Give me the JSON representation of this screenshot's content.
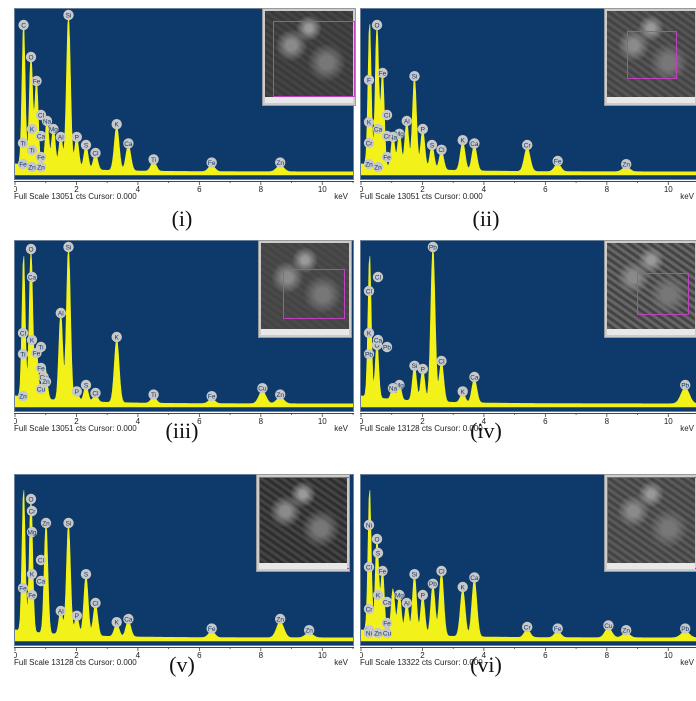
{
  "colors": {
    "plot_bg": "#0e3a6b",
    "spectrum": "#f2f21a",
    "label_fill": "#c8c8c8",
    "label_text": "#0e3a6b",
    "inset_select": "#c040c0"
  },
  "status_prefix": "Full Scale",
  "status_suffix": "cts Cursor: 0.000",
  "unit_label": "keV",
  "x_ticks": [
    0,
    2,
    4,
    6,
    8,
    10
  ],
  "chart_data": [
    {
      "type": "area",
      "caption": "(i)",
      "full_scale": "13051",
      "xlim": [
        0,
        11
      ],
      "peaks": [
        {
          "el": "C",
          "kev": 0.28,
          "h": 0.9
        },
        {
          "el": "O",
          "kev": 0.52,
          "h": 0.7
        },
        {
          "el": "Fe",
          "kev": 0.7,
          "h": 0.55
        },
        {
          "el": "Na",
          "kev": 1.04,
          "h": 0.3
        },
        {
          "el": "Mg",
          "kev": 1.25,
          "h": 0.25
        },
        {
          "el": "Al",
          "kev": 1.49,
          "h": 0.2
        },
        {
          "el": "Si",
          "kev": 1.74,
          "h": 0.97
        },
        {
          "el": "P",
          "kev": 2.01,
          "h": 0.2
        },
        {
          "el": "S",
          "kev": 2.31,
          "h": 0.15
        },
        {
          "el": "Cl",
          "kev": 2.62,
          "h": 0.1
        },
        {
          "el": "K",
          "kev": 3.31,
          "h": 0.28
        },
        {
          "el": "Ca",
          "kev": 3.69,
          "h": 0.16
        },
        {
          "el": "Ti",
          "kev": 4.51,
          "h": 0.06
        },
        {
          "el": "Fe",
          "kev": 6.4,
          "h": 0.04
        },
        {
          "el": "Zn",
          "kev": 8.63,
          "h": 0.04
        }
      ],
      "labels": [
        "Cl",
        "Ti",
        "Ca",
        "K",
        "O",
        "Na",
        "C",
        "Fe",
        "Zn",
        "Mg",
        "P",
        "Al",
        "S",
        "Fe",
        "Cl",
        "Si",
        "K",
        "Ca",
        "Ti",
        "Ti",
        "Fe",
        "Fe",
        "Zn",
        "Zn"
      ]
    },
    {
      "type": "area",
      "caption": "(ii)",
      "full_scale": "13051",
      "xlim": [
        0,
        11
      ],
      "peaks": [
        {
          "el": "C",
          "kev": 0.28,
          "h": 0.9
        },
        {
          "el": "O",
          "kev": 0.52,
          "h": 0.9
        },
        {
          "el": "Fe",
          "kev": 0.7,
          "h": 0.6
        },
        {
          "el": "Na",
          "kev": 1.04,
          "h": 0.2
        },
        {
          "el": "Mg",
          "kev": 1.25,
          "h": 0.22
        },
        {
          "el": "Al",
          "kev": 1.49,
          "h": 0.3
        },
        {
          "el": "Si",
          "kev": 1.74,
          "h": 0.58
        },
        {
          "el": "P",
          "kev": 2.01,
          "h": 0.25
        },
        {
          "el": "S",
          "kev": 2.31,
          "h": 0.15
        },
        {
          "el": "Cl",
          "kev": 2.62,
          "h": 0.12
        },
        {
          "el": "K",
          "kev": 3.31,
          "h": 0.18
        },
        {
          "el": "Ca",
          "kev": 3.69,
          "h": 0.16
        },
        {
          "el": "Cr",
          "kev": 5.41,
          "h": 0.15
        },
        {
          "el": "Fe",
          "kev": 6.4,
          "h": 0.05
        },
        {
          "el": "Zn",
          "kev": 8.63,
          "h": 0.03
        }
      ],
      "labels": [
        "Cl",
        "Fe",
        "Cr",
        "Ca",
        "K",
        "O",
        "Al",
        "Mg",
        "Na",
        "F",
        "Zn",
        "Si",
        "P",
        "S",
        "Cl",
        "K",
        "Ca",
        "Cr",
        "Cr",
        "Fe",
        "Fe",
        "Zn",
        "Zn"
      ]
    },
    {
      "type": "area",
      "caption": "(iii)",
      "full_scale": "13051",
      "xlim": [
        0,
        11
      ],
      "peaks": [
        {
          "el": "C",
          "kev": 0.28,
          "h": 0.9
        },
        {
          "el": "O",
          "kev": 0.52,
          "h": 0.95
        },
        {
          "el": "Fe",
          "kev": 0.7,
          "h": 0.3
        },
        {
          "el": "Cu",
          "kev": 0.93,
          "h": 0.15
        },
        {
          "el": "Zn",
          "kev": 1.01,
          "h": 0.12
        },
        {
          "el": "Al",
          "kev": 1.49,
          "h": 0.55
        },
        {
          "el": "Si",
          "kev": 1.74,
          "h": 0.97
        },
        {
          "el": "P",
          "kev": 2.01,
          "h": 0.06
        },
        {
          "el": "S",
          "kev": 2.31,
          "h": 0.1
        },
        {
          "el": "Cl",
          "kev": 2.62,
          "h": 0.05
        },
        {
          "el": "K",
          "kev": 3.31,
          "h": 0.4
        },
        {
          "el": "Ti",
          "kev": 4.51,
          "h": 0.04
        },
        {
          "el": "Fe",
          "kev": 6.4,
          "h": 0.03
        },
        {
          "el": "Cu",
          "kev": 8.05,
          "h": 0.08
        },
        {
          "el": "Zn",
          "kev": 8.63,
          "h": 0.04
        }
      ],
      "labels": [
        "Cl",
        "Fe",
        "Ti",
        "K",
        "Ca",
        "O",
        "Al",
        "Si",
        "Cu",
        "Zn",
        "P",
        "S",
        "Cl",
        "K",
        "Ti",
        "Ti",
        "Fe",
        "Fe",
        "Cu",
        "Zn",
        "Cu",
        "Zn"
      ]
    },
    {
      "type": "area",
      "caption": "(iv)",
      "full_scale": "13128",
      "xlim": [
        0,
        11
      ],
      "peaks": [
        {
          "el": "C",
          "kev": 0.28,
          "h": 0.9
        },
        {
          "el": "O",
          "kev": 0.52,
          "h": 0.35
        },
        {
          "el": "Na",
          "kev": 1.04,
          "h": 0.08
        },
        {
          "el": "Mg",
          "kev": 1.25,
          "h": 0.1
        },
        {
          "el": "Si",
          "kev": 1.74,
          "h": 0.22
        },
        {
          "el": "P",
          "kev": 2.01,
          "h": 0.2
        },
        {
          "el": "Pb",
          "kev": 2.34,
          "h": 0.97
        },
        {
          "el": "Cl",
          "kev": 2.62,
          "h": 0.25
        },
        {
          "el": "K",
          "kev": 3.31,
          "h": 0.06
        },
        {
          "el": "Ca",
          "kev": 3.69,
          "h": 0.15
        },
        {
          "el": "Pb",
          "kev": 10.55,
          "h": 0.1
        }
      ],
      "labels": [
        "Cl",
        "K",
        "O",
        "Ca",
        "Cl",
        "Pb",
        "Cl",
        "Si",
        "Pb",
        "Mg",
        "P",
        "Na",
        "K",
        "Ca",
        "Pb",
        "Pb"
      ]
    },
    {
      "type": "area",
      "caption": "(v)",
      "full_scale": "13128",
      "xlim": [
        0,
        11
      ],
      "peaks": [
        {
          "el": "C",
          "kev": 0.28,
          "h": 0.9
        },
        {
          "el": "O",
          "kev": 0.52,
          "h": 0.85
        },
        {
          "el": "Zn",
          "kev": 1.01,
          "h": 0.7
        },
        {
          "el": "Al",
          "kev": 1.49,
          "h": 0.15
        },
        {
          "el": "Si",
          "kev": 1.74,
          "h": 0.7
        },
        {
          "el": "P",
          "kev": 2.01,
          "h": 0.12
        },
        {
          "el": "S",
          "kev": 2.31,
          "h": 0.38
        },
        {
          "el": "Cl",
          "kev": 2.62,
          "h": 0.2
        },
        {
          "el": "K",
          "kev": 3.31,
          "h": 0.08
        },
        {
          "el": "Ca",
          "kev": 3.69,
          "h": 0.1
        },
        {
          "el": "Fe",
          "kev": 6.4,
          "h": 0.04
        },
        {
          "el": "Zn",
          "kev": 8.63,
          "h": 0.1
        },
        {
          "el": "Zn",
          "kev": 9.57,
          "h": 0.03
        }
      ],
      "labels": [
        "Cl",
        "Fe",
        "Ca",
        "K",
        "Cr",
        "O",
        "Zn",
        "Mg",
        "Si",
        "S",
        "Al",
        "Cl",
        "P",
        "K",
        "Ca",
        "Fe",
        "Fe",
        "Zn",
        "Zn"
      ]
    },
    {
      "type": "area",
      "caption": "(vi)",
      "full_scale": "13322",
      "xlim": [
        0,
        11
      ],
      "peaks": [
        {
          "el": "C",
          "kev": 0.28,
          "h": 0.9
        },
        {
          "el": "O",
          "kev": 0.52,
          "h": 0.6
        },
        {
          "el": "Fe",
          "kev": 0.7,
          "h": 0.4
        },
        {
          "el": "Na",
          "kev": 1.04,
          "h": 0.28
        },
        {
          "el": "Mg",
          "kev": 1.25,
          "h": 0.25
        },
        {
          "el": "Al",
          "kev": 1.49,
          "h": 0.2
        },
        {
          "el": "Si",
          "kev": 1.74,
          "h": 0.38
        },
        {
          "el": "P",
          "kev": 2.01,
          "h": 0.25
        },
        {
          "el": "Pb",
          "kev": 2.34,
          "h": 0.32
        },
        {
          "el": "Cl",
          "kev": 2.62,
          "h": 0.4
        },
        {
          "el": "K",
          "kev": 3.31,
          "h": 0.3
        },
        {
          "el": "Ca",
          "kev": 3.69,
          "h": 0.36
        },
        {
          "el": "Cr",
          "kev": 5.41,
          "h": 0.05
        },
        {
          "el": "Fe",
          "kev": 6.4,
          "h": 0.04
        },
        {
          "el": "Cu",
          "kev": 8.05,
          "h": 0.06
        },
        {
          "el": "Zn",
          "kev": 8.63,
          "h": 0.03
        },
        {
          "el": "Pb",
          "kev": 10.55,
          "h": 0.04
        }
      ],
      "labels": [
        "Cl",
        "Fe",
        "K",
        "Cr",
        "Ca",
        "O",
        "Ni",
        "Zn",
        "Mg",
        "Cu",
        "S",
        "Pb",
        "Cl",
        "Si",
        "Al",
        "P",
        "K",
        "Ca",
        "Cr",
        "Fe",
        "Fe",
        "Cu",
        "Zn",
        "Cu",
        "Ni",
        "Zn",
        "Pb"
      ]
    }
  ]
}
